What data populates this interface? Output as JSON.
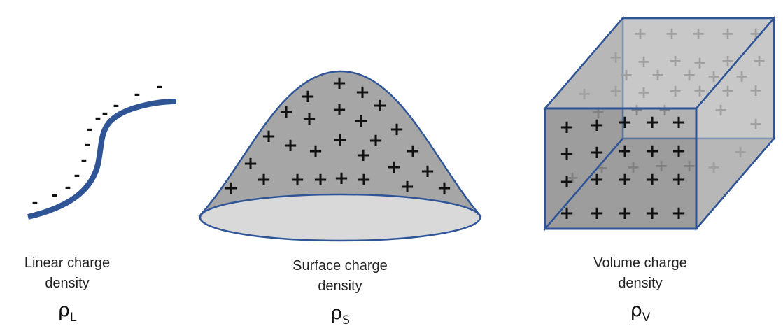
{
  "panels": [
    {
      "caption_line1": "Linear charge",
      "caption_line2": "density",
      "symbol": "ρ",
      "subscript": "L",
      "charge_sign": "-"
    },
    {
      "caption_line1": "Surface charge",
      "caption_line2": "density",
      "symbol": "ρ",
      "subscript": "S",
      "charge_sign": "+"
    },
    {
      "caption_line1": "Volume charge",
      "caption_line2": "density",
      "symbol": "ρ",
      "subscript": "V",
      "charge_sign": "+"
    }
  ],
  "colors": {
    "outline": "#2f5597",
    "surface_fill": "#a6a6a6",
    "base_fill": "#d9d9d9",
    "cube_front": "#969696",
    "cube_side": "#a3a3a3",
    "cube_back": "#c8c8c8",
    "charge_dark": "#111111",
    "charge_faded": "#707070"
  }
}
